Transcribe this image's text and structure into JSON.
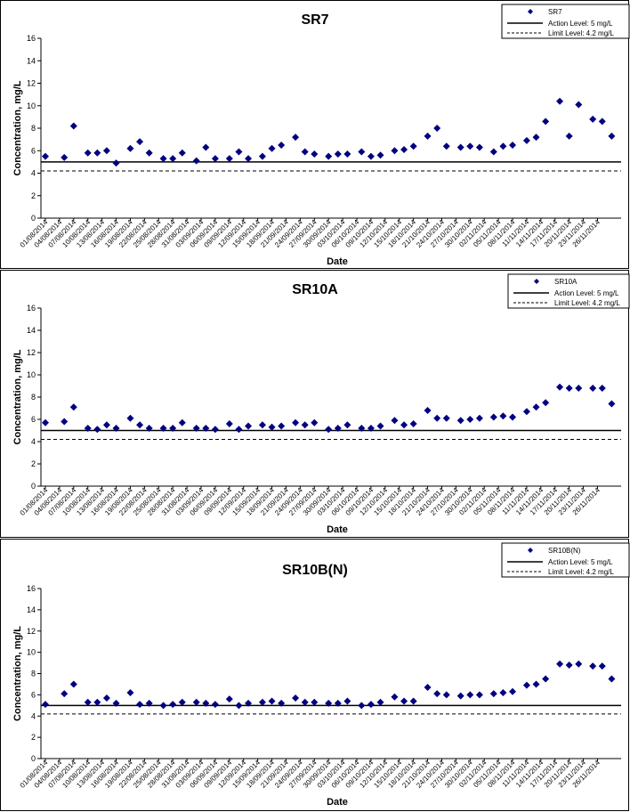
{
  "legend": {
    "series_label_sr7": "SR7",
    "series_label_sr10a": "SR10A",
    "series_label_sr10bn": "SR10B(N)",
    "action_label": "Action Level: 5 mg/L",
    "limit_label": "Limit Level: 4.2 mg/L"
  },
  "chart_data": [
    {
      "type": "scatter",
      "title": "SR7",
      "xlabel": "Date",
      "ylabel": "Concentration, mg/L",
      "ylim": [
        0,
        16
      ],
      "yticks": [
        0,
        2,
        4,
        6,
        8,
        10,
        12,
        14,
        16
      ],
      "xticks": [
        "01/08/2014",
        "04/08/2014",
        "07/08/2014",
        "10/08/2014",
        "13/08/2014",
        "16/08/2014",
        "19/08/2014",
        "22/08/2014",
        "25/08/2014",
        "28/08/2014",
        "31/08/2014",
        "03/09/2014",
        "06/09/2014",
        "09/09/2014",
        "12/09/2014",
        "15/09/2014",
        "18/09/2014",
        "21/09/2014",
        "24/09/2014",
        "27/09/2014",
        "30/09/2014",
        "03/10/2014",
        "06/10/2014",
        "09/10/2014",
        "12/10/2014",
        "15/10/2014",
        "18/10/2014",
        "21/10/2014",
        "24/10/2014",
        "27/10/2014",
        "30/10/2014",
        "02/11/2014",
        "05/11/2014",
        "08/11/2014",
        "11/11/2014",
        "14/11/2014",
        "17/11/2014",
        "20/11/2014",
        "23/11/2014",
        "26/11/2014"
      ],
      "grid": false,
      "legend_position": "top-right",
      "series": [
        {
          "name": "SR7",
          "marker": "diamond",
          "color": "#000080",
          "x": [
            "01/08/2014",
            "05/08/2014",
            "07/08/2014",
            "10/08/2014",
            "12/08/2014",
            "14/08/2014",
            "16/08/2014",
            "19/08/2014",
            "21/08/2014",
            "23/08/2014",
            "26/08/2014",
            "28/08/2014",
            "30/08/2014",
            "02/09/2014",
            "04/09/2014",
            "06/09/2014",
            "09/09/2014",
            "11/09/2014",
            "13/09/2014",
            "16/09/2014",
            "18/09/2014",
            "20/09/2014",
            "23/09/2014",
            "25/09/2014",
            "27/09/2014",
            "30/09/2014",
            "02/10/2014",
            "04/10/2014",
            "07/10/2014",
            "09/10/2014",
            "11/10/2014",
            "14/10/2014",
            "16/10/2014",
            "18/10/2014",
            "21/10/2014",
            "23/10/2014",
            "25/10/2014",
            "28/10/2014",
            "30/10/2014",
            "01/11/2014",
            "04/11/2014",
            "06/11/2014",
            "08/11/2014",
            "11/11/2014",
            "13/11/2014",
            "15/11/2014",
            "18/11/2014",
            "20/11/2014",
            "22/11/2014",
            "25/11/2014",
            "27/11/2014",
            "29/11/2014"
          ],
          "values": [
            5.5,
            5.4,
            8.2,
            5.8,
            5.8,
            6.0,
            4.9,
            6.2,
            6.8,
            5.8,
            5.3,
            5.3,
            5.8,
            5.1,
            6.3,
            5.3,
            5.3,
            5.9,
            5.3,
            5.5,
            6.2,
            6.5,
            7.2,
            5.9,
            5.7,
            5.5,
            5.7,
            5.7,
            5.9,
            5.5,
            5.6,
            6.0,
            6.1,
            6.4,
            7.3,
            8.0,
            6.4,
            6.3,
            6.4,
            6.3,
            5.9,
            6.4,
            6.5,
            6.9,
            7.2,
            8.6,
            10.4,
            7.3,
            10.1,
            8.8,
            8.6,
            7.3
          ]
        },
        {
          "name": "Action Level: 5 mg/L",
          "style": "solid",
          "color": "#000000",
          "value": 5
        },
        {
          "name": "Limit Level: 4.2 mg/L",
          "style": "dashed",
          "color": "#000000",
          "value": 4.2
        }
      ]
    },
    {
      "type": "scatter",
      "title": "SR10A",
      "xlabel": "Date",
      "ylabel": "Concentration, mg/L",
      "ylim": [
        0,
        16
      ],
      "yticks": [
        0,
        2,
        4,
        6,
        8,
        10,
        12,
        14,
        16
      ],
      "xticks": [
        "01/08/2014",
        "04/08/2014",
        "07/08/2014",
        "10/08/2014",
        "13/08/2014",
        "16/08/2014",
        "19/08/2014",
        "22/08/2014",
        "25/08/2014",
        "28/08/2014",
        "31/08/2014",
        "03/09/2014",
        "06/09/2014",
        "09/09/2014",
        "12/09/2014",
        "15/09/2014",
        "18/09/2014",
        "21/09/2014",
        "24/09/2014",
        "27/09/2014",
        "30/09/2014",
        "03/10/2014",
        "06/10/2014",
        "09/10/2014",
        "12/10/2014",
        "15/10/2014",
        "18/10/2014",
        "21/10/2014",
        "24/10/2014",
        "27/10/2014",
        "30/10/2014",
        "02/11/2014",
        "05/11/2014",
        "08/11/2014",
        "11/11/2014",
        "14/11/2014",
        "17/11/2014",
        "20/11/2014",
        "23/11/2014",
        "26/11/2014"
      ],
      "grid": false,
      "legend_position": "top-right",
      "series": [
        {
          "name": "SR10A",
          "marker": "diamond",
          "color": "#000080",
          "x": [
            "01/08/2014",
            "05/08/2014",
            "07/08/2014",
            "10/08/2014",
            "12/08/2014",
            "14/08/2014",
            "16/08/2014",
            "19/08/2014",
            "21/08/2014",
            "23/08/2014",
            "26/08/2014",
            "28/08/2014",
            "30/08/2014",
            "02/09/2014",
            "04/09/2014",
            "06/09/2014",
            "09/09/2014",
            "11/09/2014",
            "13/09/2014",
            "16/09/2014",
            "18/09/2014",
            "20/09/2014",
            "23/09/2014",
            "25/09/2014",
            "27/09/2014",
            "30/09/2014",
            "02/10/2014",
            "04/10/2014",
            "07/10/2014",
            "09/10/2014",
            "11/10/2014",
            "14/10/2014",
            "16/10/2014",
            "18/10/2014",
            "21/10/2014",
            "23/10/2014",
            "25/10/2014",
            "28/10/2014",
            "30/10/2014",
            "01/11/2014",
            "04/11/2014",
            "06/11/2014",
            "08/11/2014",
            "11/11/2014",
            "13/11/2014",
            "15/11/2014",
            "18/11/2014",
            "20/11/2014",
            "22/11/2014",
            "25/11/2014",
            "27/11/2014",
            "29/11/2014"
          ],
          "values": [
            5.7,
            5.8,
            7.1,
            5.2,
            5.1,
            5.5,
            5.2,
            6.1,
            5.5,
            5.2,
            5.2,
            5.2,
            5.7,
            5.2,
            5.2,
            5.1,
            5.6,
            5.1,
            5.4,
            5.5,
            5.3,
            5.4,
            5.7,
            5.5,
            5.7,
            5.1,
            5.2,
            5.5,
            5.2,
            5.2,
            5.4,
            5.9,
            5.5,
            5.6,
            6.8,
            6.1,
            6.1,
            5.9,
            6.0,
            6.1,
            6.2,
            6.3,
            6.2,
            6.7,
            7.1,
            7.5,
            8.9,
            8.8,
            8.8,
            8.8,
            8.8,
            7.4
          ]
        },
        {
          "name": "Action Level: 5 mg/L",
          "style": "solid",
          "color": "#000000",
          "value": 5
        },
        {
          "name": "Limit Level: 4.2 mg/L",
          "style": "dashed",
          "color": "#000000",
          "value": 4.2
        }
      ]
    },
    {
      "type": "scatter",
      "title": "SR10B(N)",
      "xlabel": "Date",
      "ylabel": "Concentration, mg/L",
      "ylim": [
        0,
        16
      ],
      "yticks": [
        0,
        2,
        4,
        6,
        8,
        10,
        12,
        14,
        16
      ],
      "xticks": [
        "01/08/2014",
        "04/08/2014",
        "07/08/2014",
        "10/08/2014",
        "13/08/2014",
        "16/08/2014",
        "19/08/2014",
        "22/08/2014",
        "25/08/2014",
        "28/08/2014",
        "31/08/2014",
        "03/09/2014",
        "06/09/2014",
        "09/09/2014",
        "12/09/2014",
        "15/09/2014",
        "18/09/2014",
        "21/09/2014",
        "24/09/2014",
        "27/09/2014",
        "30/09/2014",
        "03/10/2014",
        "06/10/2014",
        "09/10/2014",
        "12/10/2014",
        "15/10/2014",
        "18/10/2014",
        "21/10/2014",
        "24/10/2014",
        "27/10/2014",
        "30/10/2014",
        "02/11/2014",
        "05/11/2014",
        "08/11/2014",
        "11/11/2014",
        "14/11/2014",
        "17/11/2014",
        "20/11/2014",
        "23/11/2014",
        "26/11/2014"
      ],
      "grid": false,
      "legend_position": "top-right",
      "series": [
        {
          "name": "SR10B(N)",
          "marker": "diamond",
          "color": "#000080",
          "x": [
            "01/08/2014",
            "05/08/2014",
            "07/08/2014",
            "10/08/2014",
            "12/08/2014",
            "14/08/2014",
            "16/08/2014",
            "19/08/2014",
            "21/08/2014",
            "23/08/2014",
            "26/08/2014",
            "28/08/2014",
            "30/08/2014",
            "02/09/2014",
            "04/09/2014",
            "06/09/2014",
            "09/09/2014",
            "11/09/2014",
            "13/09/2014",
            "16/09/2014",
            "18/09/2014",
            "20/09/2014",
            "23/09/2014",
            "25/09/2014",
            "27/09/2014",
            "30/09/2014",
            "02/10/2014",
            "04/10/2014",
            "07/10/2014",
            "09/10/2014",
            "11/10/2014",
            "14/10/2014",
            "16/10/2014",
            "18/10/2014",
            "21/10/2014",
            "23/10/2014",
            "25/10/2014",
            "28/10/2014",
            "30/10/2014",
            "01/11/2014",
            "04/11/2014",
            "06/11/2014",
            "08/11/2014",
            "11/11/2014",
            "13/11/2014",
            "15/11/2014",
            "18/11/2014",
            "20/11/2014",
            "22/11/2014",
            "25/11/2014",
            "27/11/2014",
            "29/11/2014"
          ],
          "values": [
            5.1,
            6.1,
            7.0,
            5.3,
            5.3,
            5.7,
            5.2,
            6.2,
            5.1,
            5.2,
            5.0,
            5.1,
            5.3,
            5.3,
            5.2,
            5.1,
            5.6,
            5.0,
            5.2,
            5.3,
            5.4,
            5.2,
            5.7,
            5.3,
            5.3,
            5.2,
            5.2,
            5.4,
            5.0,
            5.1,
            5.3,
            5.8,
            5.4,
            5.4,
            6.7,
            6.1,
            6.0,
            5.9,
            6.0,
            6.0,
            6.1,
            6.2,
            6.3,
            6.9,
            7.0,
            7.5,
            8.9,
            8.8,
            8.9,
            8.7,
            8.7,
            7.5
          ]
        },
        {
          "name": "Action Level: 5 mg/L",
          "style": "solid",
          "color": "#000000",
          "value": 5
        },
        {
          "name": "Limit Level: 4.2 mg/L",
          "style": "dashed",
          "color": "#000000",
          "value": 4.2
        }
      ]
    }
  ]
}
